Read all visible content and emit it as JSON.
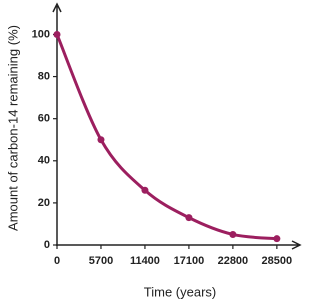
{
  "chart_data": {
    "type": "line",
    "x_label": "Time (years)",
    "y_label": "Amount of carbon-14 remaining (%)",
    "x": [
      0,
      5700,
      11400,
      17100,
      22800,
      28500
    ],
    "series": [
      {
        "color": "#9c1f5f",
        "values": [
          100,
          50,
          26,
          13,
          5,
          3
        ]
      }
    ],
    "xlim": [
      0,
      31500
    ],
    "xticks": [
      0,
      5700,
      11400,
      17100,
      22800,
      28500
    ],
    "ylim": [
      0,
      114
    ],
    "yticks": [
      0,
      20,
      40,
      60,
      80,
      100
    ]
  }
}
